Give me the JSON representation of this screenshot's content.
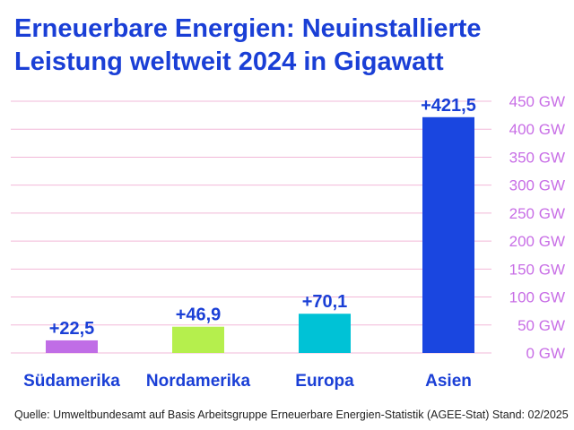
{
  "title": "Erneuerbare Energien: Neuinstallierte Leistung weltweit 2024 in Gigawatt",
  "source": "Quelle: Umweltbundesamt auf Basis Arbeitsgruppe Erneuerbare Energien-Statistik (AGEE-Stat) Stand: 02/2025",
  "colors": {
    "title": "#1a3fd6",
    "value_labels": "#1a3fd6",
    "category_labels": "#1a3fd6",
    "axis_ticks": "#c86ee6",
    "gridlines": "#f2b8d8"
  },
  "chart_data": {
    "type": "bar",
    "title": "Erneuerbare Energien: Neuinstallierte Leistung weltweit 2024 in Gigawatt",
    "categories": [
      "Südamerika",
      "Nordamerika",
      "Europa",
      "Asien"
    ],
    "values": [
      22.5,
      46.9,
      70.1,
      421.5
    ],
    "value_labels": [
      "+22,5",
      "+46,9",
      "+70,1",
      "+421,5"
    ],
    "bar_colors": [
      "#c06de6",
      "#b5ef4d",
      "#00c2d6",
      "#1a46e0"
    ],
    "yticks": [
      "0 GW",
      "50 GW",
      "100 GW",
      "150 GW",
      "200 GW",
      "250 GW",
      "300 GW",
      "350 GW",
      "400 GW",
      "450 GW"
    ],
    "ylim": [
      0,
      450
    ],
    "yaxis_position": "right",
    "grid": true,
    "xlabel": "",
    "ylabel": ""
  }
}
